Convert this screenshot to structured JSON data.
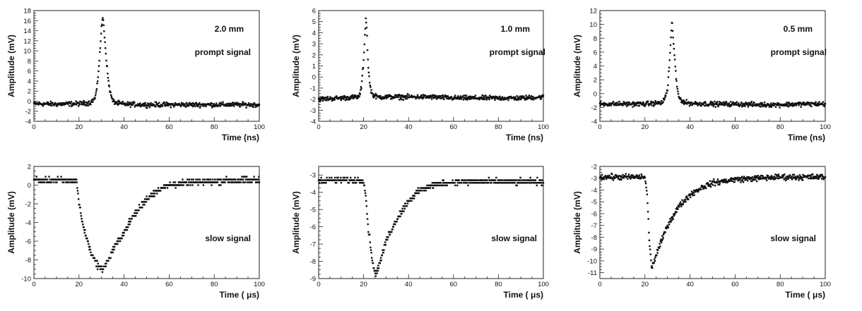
{
  "chart_data": [
    {
      "type": "scatter",
      "xlabel": "Time (ns)",
      "ylabel": "Amplitude (mV)",
      "xlim": [
        0,
        100
      ],
      "ylim": [
        -4,
        18
      ],
      "xticks": [
        0,
        20,
        40,
        60,
        80,
        100
      ],
      "yticks": [
        -4,
        -2,
        0,
        2,
        4,
        6,
        8,
        10,
        12,
        14,
        16,
        18
      ],
      "annotations": [
        "2.0 mm",
        "prompt signal"
      ],
      "grid": false,
      "series": [
        {
          "x": [
            0,
            10,
            20,
            25,
            27,
            28,
            29,
            30,
            30.5,
            31,
            32,
            33,
            34,
            35,
            37,
            40,
            50,
            60,
            70,
            80,
            90,
            100
          ],
          "y": [
            -0.5,
            -0.6,
            -0.5,
            -0.3,
            0.5,
            2.5,
            8,
            14.5,
            16.8,
            15,
            9,
            4,
            1.5,
            0,
            -0.4,
            -0.6,
            -0.7,
            -0.7,
            -0.7,
            -0.7,
            -0.7,
            -0.7
          ]
        }
      ]
    },
    {
      "type": "scatter",
      "xlabel": "Time (ns)",
      "ylabel": "Amplitude (mV)",
      "xlim": [
        0,
        100
      ],
      "ylim": [
        -4,
        6
      ],
      "xticks": [
        0,
        20,
        40,
        60,
        80,
        100
      ],
      "yticks": [
        -4,
        -3,
        -2,
        -1,
        0,
        1,
        2,
        3,
        4,
        5,
        6
      ],
      "annotations": [
        "1.0 mm",
        "prompt signal"
      ],
      "grid": false,
      "series": [
        {
          "x": [
            0,
            10,
            18,
            19,
            20,
            20.5,
            21,
            21.5,
            22,
            23,
            24,
            26,
            30,
            40,
            50,
            60,
            70,
            80,
            90,
            100
          ],
          "y": [
            -2,
            -1.9,
            -1.8,
            -1,
            1.5,
            3.5,
            5.4,
            4,
            1,
            -1,
            -1.6,
            -1.8,
            -1.8,
            -1.8,
            -1.8,
            -1.9,
            -1.9,
            -1.9,
            -1.9,
            -1.8
          ]
        }
      ]
    },
    {
      "type": "scatter",
      "xlabel": "Time (ns)",
      "ylabel": "Amplitude (mV)",
      "xlim": [
        0,
        100
      ],
      "ylim": [
        -4,
        12
      ],
      "xticks": [
        0,
        20,
        40,
        60,
        80,
        100
      ],
      "yticks": [
        -4,
        -2,
        0,
        2,
        4,
        6,
        8,
        10,
        12
      ],
      "annotations": [
        "0.5 mm",
        "prompt signal"
      ],
      "grid": false,
      "series": [
        {
          "x": [
            0,
            10,
            20,
            28,
            30,
            31,
            32,
            33,
            34,
            35,
            37,
            40,
            50,
            60,
            70,
            80,
            90,
            100
          ],
          "y": [
            -1.5,
            -1.5,
            -1.5,
            -1.3,
            0.5,
            5,
            10.5,
            6,
            1.5,
            -0.5,
            -1.2,
            -1.4,
            -1.5,
            -1.5,
            -1.6,
            -1.6,
            -1.5,
            -1.5
          ]
        }
      ]
    },
    {
      "type": "scatter",
      "xlabel": "Time ( μs)",
      "ylabel": "Amplitude (mV)",
      "xlim": [
        0,
        100
      ],
      "ylim": [
        -10,
        2
      ],
      "xticks": [
        0,
        20,
        40,
        60,
        80,
        100
      ],
      "yticks": [
        -10,
        -8,
        -6,
        -4,
        -2,
        0,
        2
      ],
      "annotations": [
        "slow signal"
      ],
      "grid": false,
      "series": [
        {
          "x": [
            0,
            10,
            19,
            20,
            22,
            25,
            28,
            30,
            32,
            35,
            40,
            45,
            50,
            55,
            60,
            70,
            80,
            90,
            100
          ],
          "y": [
            0.5,
            0.5,
            0.5,
            -2,
            -4.5,
            -7,
            -8.5,
            -9,
            -8.5,
            -7,
            -5,
            -3,
            -1.5,
            -0.5,
            0,
            0.3,
            0.4,
            0.5,
            0.5
          ]
        }
      ]
    },
    {
      "type": "scatter",
      "xlabel": "Time ( μs)",
      "ylabel": "Amplitude (mV)",
      "xlim": [
        0,
        100
      ],
      "ylim": [
        -9,
        -2.5
      ],
      "xticks": [
        0,
        20,
        40,
        60,
        80,
        100
      ],
      "yticks": [
        -9,
        -8,
        -7,
        -6,
        -5,
        -4,
        -3
      ],
      "annotations": [
        "slow signal"
      ],
      "grid": false,
      "series": [
        {
          "x": [
            0,
            10,
            20,
            21,
            22,
            24,
            25,
            26,
            28,
            30,
            35,
            40,
            45,
            50,
            60,
            70,
            80,
            90,
            100
          ],
          "y": [
            -3.3,
            -3.3,
            -3.3,
            -4.2,
            -6,
            -8,
            -8.7,
            -8.5,
            -7.8,
            -6.8,
            -5.5,
            -4.5,
            -3.9,
            -3.6,
            -3.4,
            -3.4,
            -3.4,
            -3.4,
            -3.4
          ]
        }
      ]
    },
    {
      "type": "scatter",
      "xlabel": "Time ( μs)",
      "ylabel": "Amplitude (mV)",
      "xlim": [
        0,
        100
      ],
      "ylim": [
        -11.5,
        -2
      ],
      "xticks": [
        0,
        20,
        40,
        60,
        80,
        100
      ],
      "yticks": [
        -11,
        -10,
        -9,
        -8,
        -7,
        -6,
        -5,
        -4,
        -3,
        -2
      ],
      "annotations": [
        "slow signal"
      ],
      "grid": false,
      "series": [
        {
          "x": [
            0,
            10,
            20,
            21,
            22,
            23,
            25,
            28,
            30,
            35,
            40,
            45,
            50,
            60,
            70,
            80,
            90,
            100
          ],
          "y": [
            -2.9,
            -2.9,
            -2.9,
            -4.5,
            -8.5,
            -10.6,
            -9.5,
            -8,
            -7,
            -5.4,
            -4.4,
            -3.8,
            -3.4,
            -3.1,
            -3,
            -2.9,
            -2.9,
            -2.9
          ]
        }
      ]
    }
  ]
}
